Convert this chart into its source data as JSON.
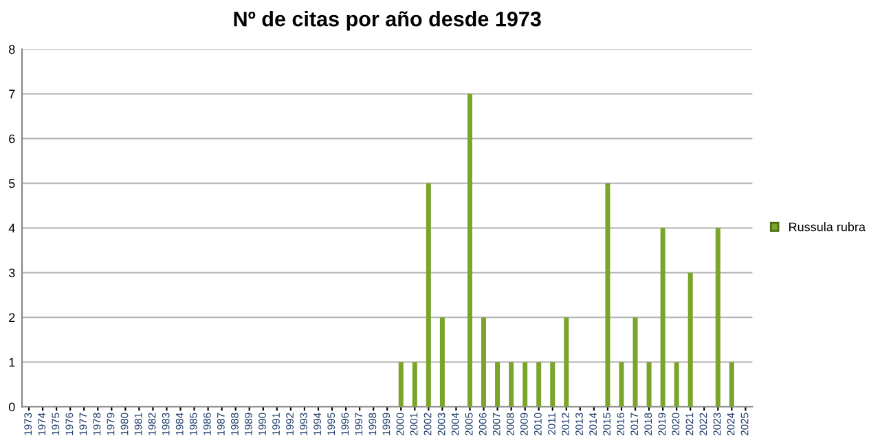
{
  "chart_data": {
    "type": "bar",
    "title": "Nº de citas por año desde 1973",
    "categories": [
      "1973",
      "1974",
      "1975",
      "1976",
      "1977",
      "1978",
      "1979",
      "1980",
      "1981",
      "1982",
      "1983",
      "1984",
      "1985",
      "1986",
      "1987",
      "1988",
      "1989",
      "1990",
      "1991",
      "1992",
      "1993",
      "1994",
      "1995",
      "1996",
      "1997",
      "1998",
      "1999",
      "2000",
      "2001",
      "2002",
      "2003",
      "2004",
      "2005",
      "2006",
      "2007",
      "2008",
      "2009",
      "2010",
      "2011",
      "2012",
      "2013",
      "2014",
      "2015",
      "2016",
      "2017",
      "2018",
      "2019",
      "2020",
      "2021",
      "2022",
      "2023",
      "2024",
      "2025"
    ],
    "series": [
      {
        "name": "Russula rubra",
        "color": "#7aa52a",
        "values": [
          0,
          0,
          0,
          0,
          0,
          0,
          0,
          0,
          0,
          0,
          0,
          0,
          0,
          0,
          0,
          0,
          0,
          0,
          0,
          0,
          0,
          0,
          0,
          0,
          0,
          0,
          0,
          1,
          1,
          5,
          2,
          0,
          7,
          2,
          1,
          1,
          1,
          1,
          1,
          2,
          0,
          0,
          5,
          1,
          2,
          1,
          4,
          1,
          3,
          0,
          4,
          1,
          0
        ]
      }
    ],
    "ylim": [
      0,
      8
    ],
    "yticks": [
      0,
      1,
      2,
      3,
      4,
      5,
      6,
      7,
      8
    ],
    "grid": "y",
    "legend": "right"
  }
}
